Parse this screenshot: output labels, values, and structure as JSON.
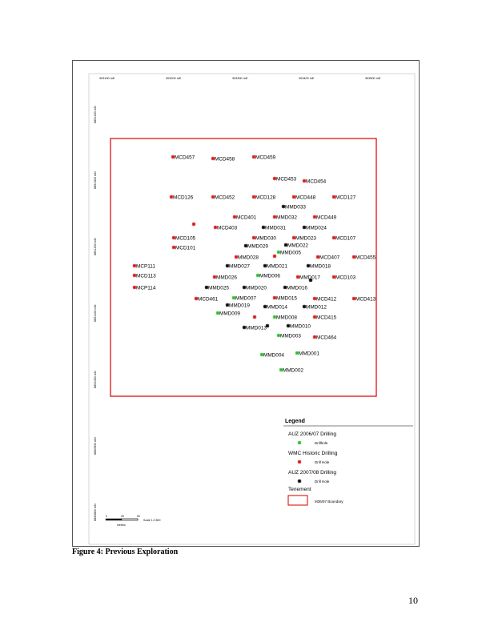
{
  "map": {
    "easting_labels": [
      "303100 mE",
      "303200 mE",
      "303300 mE",
      "303400 mE",
      "303500 mE"
    ],
    "northing_labels": [
      "6851400 mN",
      "6851300 mN",
      "6851200 mN",
      "6851100 mN",
      "6851000 mN",
      "6850900 mN",
      "6850800 mN"
    ],
    "scale_bar": {
      "ticks": [
        "0",
        "25",
        "50"
      ],
      "units": "metres",
      "label": "Scale 1:2,500"
    },
    "colors": {
      "auz_2006": "#22c022",
      "wmc": "#e01010",
      "auz_2007": "#000000",
      "tenement": "#e01010"
    },
    "drill_holes": [
      {
        "id": "MCD457",
        "type": "wmc"
      },
      {
        "id": "MCD458",
        "type": "wmc"
      },
      {
        "id": "MCD459",
        "type": "wmc"
      },
      {
        "id": "MCD453",
        "type": "wmc"
      },
      {
        "id": "MCD454",
        "type": "wmc"
      },
      {
        "id": "MCD126",
        "type": "wmc"
      },
      {
        "id": "MCD452",
        "type": "wmc"
      },
      {
        "id": "MCD128",
        "type": "wmc"
      },
      {
        "id": "MCD448",
        "type": "wmc"
      },
      {
        "id": "MCD127",
        "type": "wmc"
      },
      {
        "id": "MMD033",
        "type": "auz_2007"
      },
      {
        "id": "MCD401",
        "type": "wmc"
      },
      {
        "id": "MMD032",
        "type": "wmc"
      },
      {
        "id": "MCD449",
        "type": "wmc"
      },
      {
        "id": "",
        "type": "wmc"
      },
      {
        "id": "MCD403",
        "type": "wmc"
      },
      {
        "id": "MMD031",
        "type": "auz_2007"
      },
      {
        "id": "MMD024",
        "type": "auz_2007"
      },
      {
        "id": "MCD105",
        "type": "wmc"
      },
      {
        "id": "MMD030",
        "type": "wmc"
      },
      {
        "id": "MMD023",
        "type": "wmc"
      },
      {
        "id": "MCD107",
        "type": "wmc"
      },
      {
        "id": "MCD101",
        "type": "wmc"
      },
      {
        "id": "MMD029",
        "type": "auz_2007"
      },
      {
        "id": "MMD022",
        "type": "auz_2007"
      },
      {
        "id": "MMD005",
        "type": "auz_2006"
      },
      {
        "id": "",
        "type": "wmc"
      },
      {
        "id": "MMD028",
        "type": "wmc"
      },
      {
        "id": "MCD407",
        "type": "wmc"
      },
      {
        "id": "MCD455",
        "type": "wmc"
      },
      {
        "id": "MCP111",
        "type": "wmc"
      },
      {
        "id": "MMD027",
        "type": "auz_2007"
      },
      {
        "id": "MMD021",
        "type": "auz_2007"
      },
      {
        "id": "MMD018",
        "type": "auz_2007"
      },
      {
        "id": "MCD113",
        "type": "wmc"
      },
      {
        "id": "MMD026",
        "type": "wmc"
      },
      {
        "id": "MMD006",
        "type": "auz_2006"
      },
      {
        "id": "MMD017",
        "type": "wmc"
      },
      {
        "id": "",
        "type": "auz_2007"
      },
      {
        "id": "MCD103",
        "type": "wmc"
      },
      {
        "id": "MCP114",
        "type": "wmc"
      },
      {
        "id": "MMD025",
        "type": "auz_2007"
      },
      {
        "id": "MMD020",
        "type": "auz_2007"
      },
      {
        "id": "MMD016",
        "type": "auz_2007"
      },
      {
        "id": "MCD461",
        "type": "wmc"
      },
      {
        "id": "MMD007",
        "type": "auz_2006"
      },
      {
        "id": "MMD015",
        "type": "wmc"
      },
      {
        "id": "MCD412",
        "type": "wmc"
      },
      {
        "id": "MCD413",
        "type": "wmc"
      },
      {
        "id": "MMD019",
        "type": "auz_2007"
      },
      {
        "id": "MMD014",
        "type": "auz_2007"
      },
      {
        "id": "MMD012",
        "type": "auz_2007"
      },
      {
        "id": "MMD009",
        "type": "auz_2006"
      },
      {
        "id": "",
        "type": "wmc"
      },
      {
        "id": "MMD008",
        "type": "auz_2006"
      },
      {
        "id": "MCD415",
        "type": "wmc"
      },
      {
        "id": "MMD013",
        "type": "auz_2007"
      },
      {
        "id": "",
        "type": "auz_2007"
      },
      {
        "id": "MMD010",
        "type": "auz_2007"
      },
      {
        "id": "MMD003",
        "type": "auz_2006"
      },
      {
        "id": "MCD464",
        "type": "wmc"
      },
      {
        "id": "MMD004",
        "type": "auz_2006"
      },
      {
        "id": "MMD001",
        "type": "auz_2006"
      },
      {
        "id": "MMD002",
        "type": "auz_2006"
      }
    ]
  },
  "legend": {
    "title": "Legend",
    "groups": [
      {
        "heading": "AUZ 2006/07 Drilling",
        "item": "Drillhole",
        "type": "auz_2006"
      },
      {
        "heading": "WMC Historic Drilling",
        "item": "Drill Hole",
        "type": "wmc"
      },
      {
        "heading": "AUZ 2007/08 Drilling",
        "item": "Drill Hole",
        "type": "auz_2007"
      }
    ],
    "tenement_heading": "Tenement",
    "tenement_item": "M36/97 Boundary"
  },
  "caption": "Figure 4: Previous Exploration",
  "page_number": "10"
}
